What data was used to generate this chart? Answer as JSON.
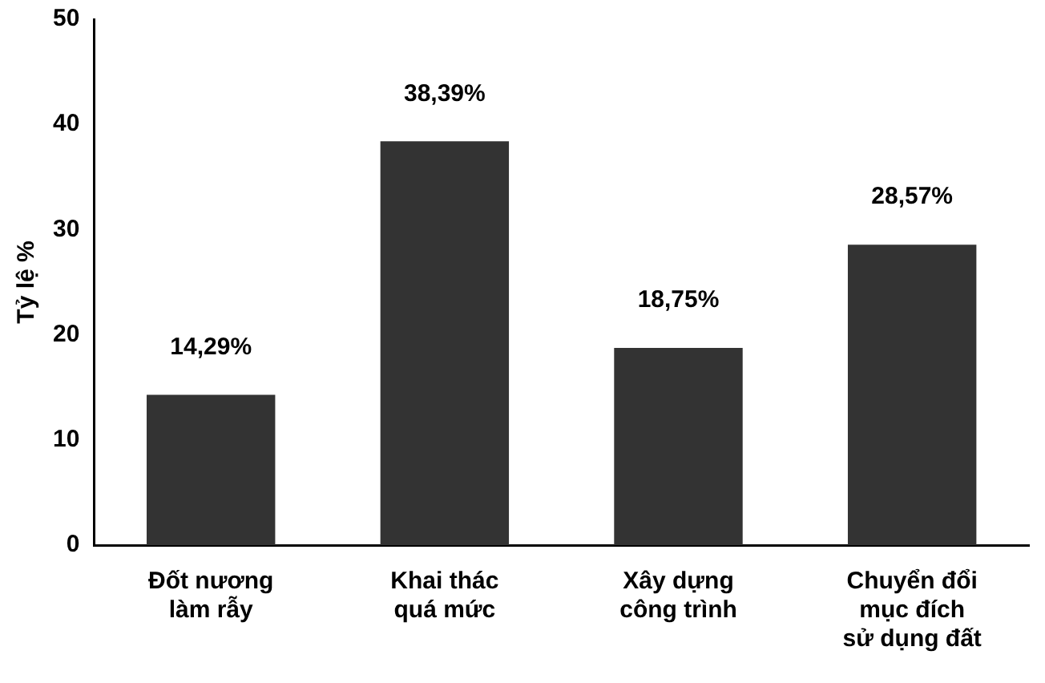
{
  "chart_data": {
    "type": "bar",
    "ylabel": "Tỷ lệ %",
    "categories": [
      "Đốt nương\nlàm rẫy",
      "Khai thác\nquá mức",
      "Xây dựng\ncông trình",
      "Chuyển đổi\nmục đích\nsử dụng đất"
    ],
    "values": [
      14.29,
      38.39,
      18.75,
      28.57
    ],
    "value_labels": [
      "14,29%",
      "38,39%",
      "18,75%",
      "28,57%"
    ],
    "color": "#333333",
    "ylim": [
      0,
      50
    ],
    "yticks": [
      0,
      10,
      20,
      30,
      40,
      50
    ],
    "grid": false,
    "legend": false
  }
}
